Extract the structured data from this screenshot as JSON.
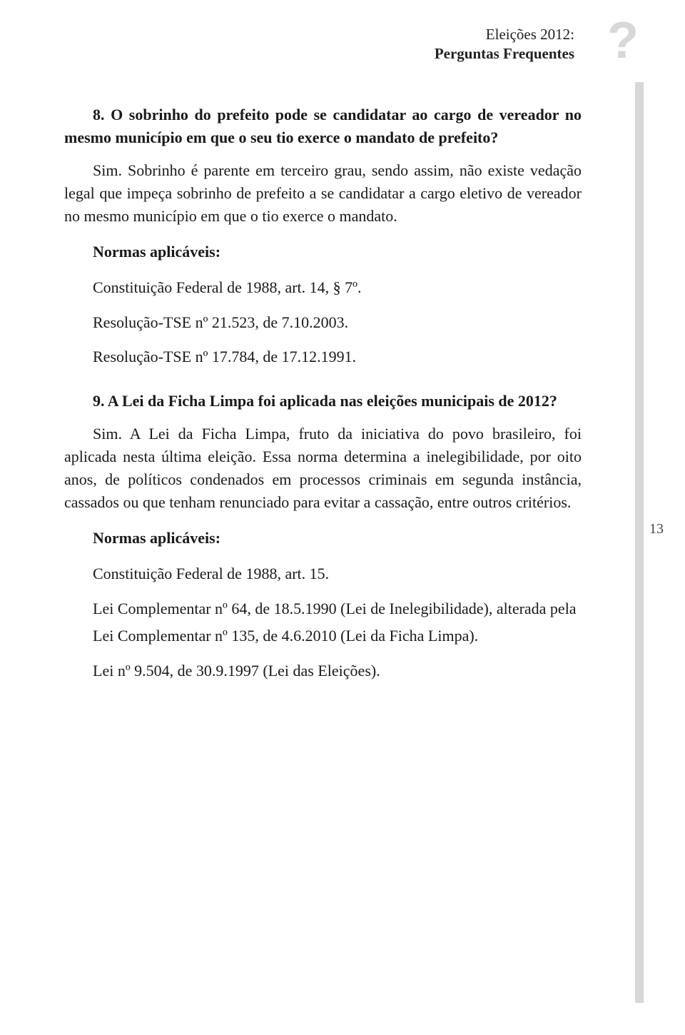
{
  "header": {
    "line1": "Eleições 2012:",
    "line2": "Perguntas Frequentes"
  },
  "page_number": "13",
  "q8": {
    "question_prefix": "8. O sobrinho do prefeito pode se candidatar ao cargo de vereador no mesmo município em que o seu tio exerce o mandato de prefeito?",
    "answer": "Sim. Sobrinho é parente em terceiro grau, sendo assim, não existe vedação legal que impeça sobrinho de prefeito a se candidatar a cargo eletivo de vereador no mesmo município em que o tio exerce o mandato.",
    "normas_title": "Normas aplicáveis:",
    "normas": [
      "Constituição Federal de 1988, art. 14, § 7º.",
      "Resolução-TSE nº 21.523, de 7.10.2003.",
      "Resolução-TSE nº 17.784, de 17.12.1991."
    ]
  },
  "q9": {
    "question_prefix": "9. A Lei da Ficha Limpa foi aplicada nas eleições municipais de 2012?",
    "answer": "Sim. A Lei da Ficha Limpa, fruto da iniciativa do povo brasileiro, foi aplicada nesta última eleição. Essa norma determina a inelegibilidade, por oito anos, de políticos condenados em processos criminais em segunda instância, cassados ou que tenham renunciado para evitar a cassação, entre outros critérios.",
    "normas_title": "Normas aplicáveis:",
    "normas": [
      "Constituição Federal de 1988, art. 15.",
      "Lei Complementar nº 64, de 18.5.1990 (Lei de Inelegibilidade), alterada pela Lei Complementar nº 135, de 4.6.2010 (Lei da Ficha Limpa).",
      "Lei nº 9.504, de 30.9.1997 (Lei das Eleições)."
    ]
  },
  "colors": {
    "text": "#1a1a1a",
    "decorative": "#d8d8d8",
    "background": "#ffffff"
  }
}
